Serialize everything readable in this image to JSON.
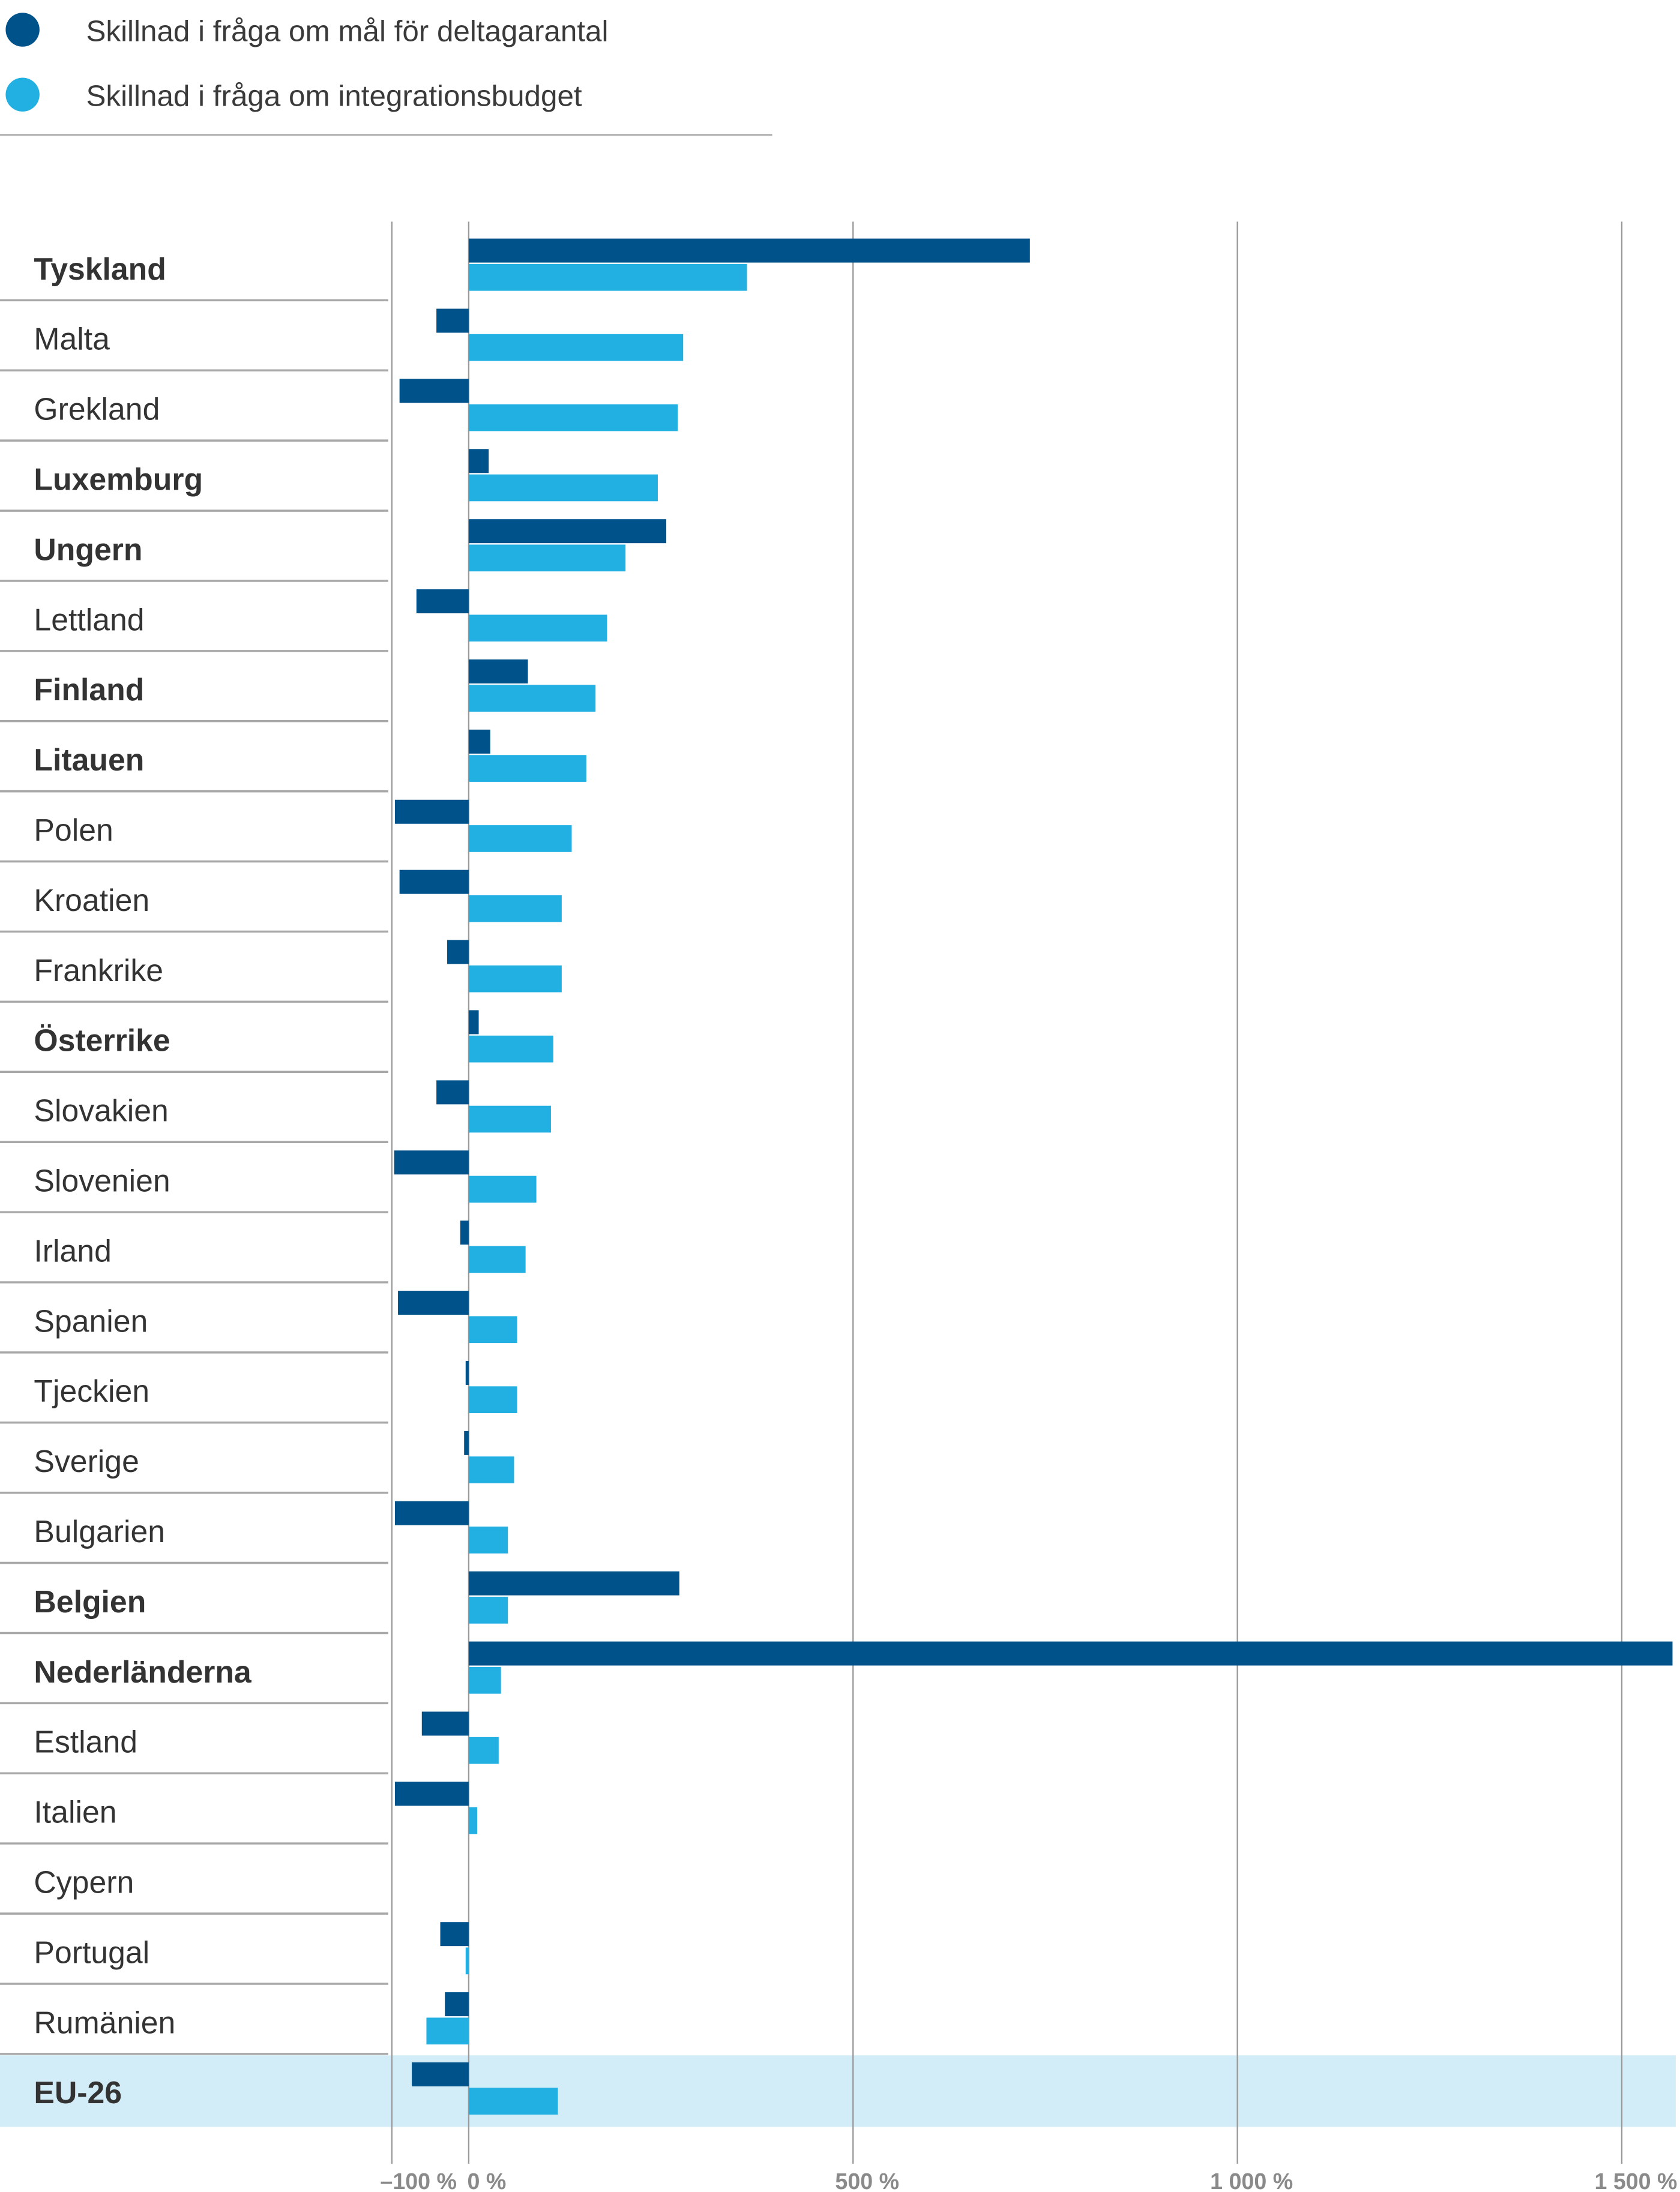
{
  "chart_data": {
    "type": "bar",
    "orientation": "horizontal",
    "title": "",
    "xlabel": "",
    "ylabel": "",
    "xlim": [
      -100,
      1570
    ],
    "xticks": [
      -100,
      0,
      500,
      1000,
      1500
    ],
    "xtick_labels": [
      "–100 %",
      "0 %",
      "500 %",
      "1 000 %",
      "1 500 %"
    ],
    "grid": true,
    "legend_position": "top-left",
    "categories": [
      "Tyskland",
      "Malta",
      "Grekland",
      "Luxemburg",
      "Ungern",
      "Lettland",
      "Finland",
      "Litauen",
      "Polen",
      "Kroatien",
      "Frankrike",
      "Österrike",
      "Slovakien",
      "Slovenien",
      "Irland",
      "Spanien",
      "Tjeckien",
      "Sverige",
      "Bulgarien",
      "Belgien",
      "Nederländerna",
      "Estland",
      "Italien",
      "Cypern",
      "Portugal",
      "Rumänien",
      "EU-26"
    ],
    "bold_categories": [
      "Tyskland",
      "Luxemburg",
      "Ungern",
      "Finland",
      "Litauen",
      "Österrike",
      "Belgien",
      "Nederländerna",
      "EU-26"
    ],
    "highlighted_category": "EU-26",
    "series": [
      {
        "name": "Skillnad i fråga om mål för deltagarantal",
        "color": "#00528a",
        "values": [
          730,
          -42,
          -90,
          26,
          257,
          -68,
          77,
          28,
          -96,
          -90,
          -28,
          13,
          -42,
          -97,
          -11,
          -92,
          -4,
          -6,
          -96,
          274,
          1566,
          -61,
          -96,
          null,
          -37,
          -31,
          -74
        ]
      },
      {
        "name": "Skillnad i fråga om integrationsbudget",
        "color": "#22b0e3",
        "values": [
          362,
          279,
          272,
          246,
          204,
          180,
          165,
          153,
          134,
          121,
          121,
          110,
          107,
          88,
          74,
          63,
          63,
          59,
          51,
          51,
          42,
          39,
          11,
          null,
          -4,
          -55,
          116
        ]
      }
    ],
    "highlight_color": "#d3edf8"
  }
}
